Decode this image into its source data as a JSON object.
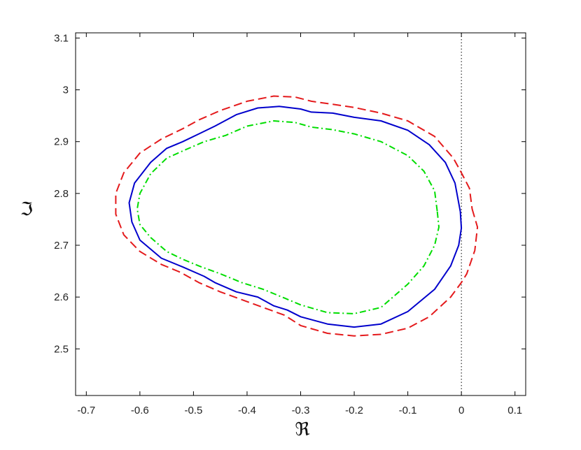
{
  "chart_data": {
    "type": "line",
    "title": "",
    "xlabel": "ℜ",
    "ylabel": "ℑ",
    "xlim": [
      -0.72,
      0.12
    ],
    "ylim": [
      2.41,
      3.11
    ],
    "x_ticks": [
      "-0.7",
      "-0.6",
      "-0.5",
      "-0.4",
      "-0.3",
      "-0.2",
      "-0.1",
      "0",
      "0.1"
    ],
    "y_ticks": [
      "2.5",
      "2.6",
      "2.7",
      "2.8",
      "2.9",
      "3",
      "3.1"
    ],
    "grid": false,
    "reference_line": {
      "x": 0,
      "style": "dotted",
      "color": "#000000"
    },
    "series": [
      {
        "style": "dashed",
        "color": "#e41a1c",
        "points": [
          [
            0.02,
            2.77
          ],
          [
            0.03,
            2.735
          ],
          [
            0.025,
            2.69
          ],
          [
            0.01,
            2.645
          ],
          [
            0.0,
            2.628
          ],
          [
            -0.02,
            2.6
          ],
          [
            -0.06,
            2.562
          ],
          [
            -0.1,
            2.54
          ],
          [
            -0.15,
            2.528
          ],
          [
            -0.2,
            2.525
          ],
          [
            -0.25,
            2.53
          ],
          [
            -0.3,
            2.545
          ],
          [
            -0.33,
            2.565
          ],
          [
            -0.37,
            2.58
          ],
          [
            -0.41,
            2.595
          ],
          [
            -0.45,
            2.61
          ],
          [
            -0.49,
            2.628
          ],
          [
            -0.525,
            2.648
          ],
          [
            -0.56,
            2.663
          ],
          [
            -0.6,
            2.688
          ],
          [
            -0.63,
            2.72
          ],
          [
            -0.645,
            2.76
          ],
          [
            -0.645,
            2.8
          ],
          [
            -0.63,
            2.84
          ],
          [
            -0.6,
            2.878
          ],
          [
            -0.56,
            2.905
          ],
          [
            -0.52,
            2.925
          ],
          [
            -0.49,
            2.942
          ],
          [
            -0.45,
            2.96
          ],
          [
            -0.4,
            2.978
          ],
          [
            -0.35,
            2.988
          ],
          [
            -0.31,
            2.986
          ],
          [
            -0.28,
            2.978
          ],
          [
            -0.24,
            2.972
          ],
          [
            -0.2,
            2.966
          ],
          [
            -0.15,
            2.955
          ],
          [
            -0.1,
            2.94
          ],
          [
            -0.05,
            2.91
          ],
          [
            -0.015,
            2.868
          ],
          [
            0.0,
            2.84
          ],
          [
            0.015,
            2.81
          ],
          [
            0.02,
            2.77
          ]
        ]
      },
      {
        "style": "solid",
        "color": "#0000cc",
        "points": [
          [
            -0.002,
            2.765
          ],
          [
            0.0,
            2.733
          ],
          [
            -0.005,
            2.7
          ],
          [
            -0.02,
            2.66
          ],
          [
            -0.05,
            2.615
          ],
          [
            -0.1,
            2.572
          ],
          [
            -0.15,
            2.548
          ],
          [
            -0.2,
            2.542
          ],
          [
            -0.25,
            2.548
          ],
          [
            -0.3,
            2.562
          ],
          [
            -0.325,
            2.575
          ],
          [
            -0.35,
            2.583
          ],
          [
            -0.38,
            2.6
          ],
          [
            -0.42,
            2.61
          ],
          [
            -0.46,
            2.628
          ],
          [
            -0.48,
            2.64
          ],
          [
            -0.52,
            2.658
          ],
          [
            -0.56,
            2.675
          ],
          [
            -0.6,
            2.71
          ],
          [
            -0.615,
            2.745
          ],
          [
            -0.62,
            2.782
          ],
          [
            -0.61,
            2.82
          ],
          [
            -0.58,
            2.86
          ],
          [
            -0.55,
            2.887
          ],
          [
            -0.52,
            2.9
          ],
          [
            -0.49,
            2.915
          ],
          [
            -0.46,
            2.93
          ],
          [
            -0.42,
            2.952
          ],
          [
            -0.38,
            2.965
          ],
          [
            -0.34,
            2.968
          ],
          [
            -0.3,
            2.963
          ],
          [
            -0.28,
            2.957
          ],
          [
            -0.24,
            2.955
          ],
          [
            -0.2,
            2.947
          ],
          [
            -0.15,
            2.94
          ],
          [
            -0.1,
            2.922
          ],
          [
            -0.06,
            2.894
          ],
          [
            -0.03,
            2.86
          ],
          [
            -0.012,
            2.82
          ],
          [
            -0.002,
            2.765
          ]
        ]
      },
      {
        "style": "dashdot",
        "color": "#00dd00",
        "points": [
          [
            -0.045,
            2.765
          ],
          [
            -0.042,
            2.735
          ],
          [
            -0.05,
            2.7
          ],
          [
            -0.07,
            2.66
          ],
          [
            -0.1,
            2.625
          ],
          [
            -0.15,
            2.58
          ],
          [
            -0.2,
            2.568
          ],
          [
            -0.25,
            2.57
          ],
          [
            -0.3,
            2.585
          ],
          [
            -0.33,
            2.598
          ],
          [
            -0.37,
            2.615
          ],
          [
            -0.41,
            2.628
          ],
          [
            -0.45,
            2.645
          ],
          [
            -0.49,
            2.66
          ],
          [
            -0.52,
            2.673
          ],
          [
            -0.55,
            2.688
          ],
          [
            -0.58,
            2.715
          ],
          [
            -0.6,
            2.74
          ],
          [
            -0.605,
            2.77
          ],
          [
            -0.6,
            2.8
          ],
          [
            -0.58,
            2.838
          ],
          [
            -0.55,
            2.868
          ],
          [
            -0.52,
            2.882
          ],
          [
            -0.48,
            2.9
          ],
          [
            -0.44,
            2.912
          ],
          [
            -0.4,
            2.93
          ],
          [
            -0.35,
            2.94
          ],
          [
            -0.31,
            2.937
          ],
          [
            -0.28,
            2.928
          ],
          [
            -0.24,
            2.923
          ],
          [
            -0.2,
            2.915
          ],
          [
            -0.15,
            2.9
          ],
          [
            -0.1,
            2.873
          ],
          [
            -0.07,
            2.843
          ],
          [
            -0.05,
            2.805
          ],
          [
            -0.045,
            2.765
          ]
        ]
      }
    ]
  }
}
